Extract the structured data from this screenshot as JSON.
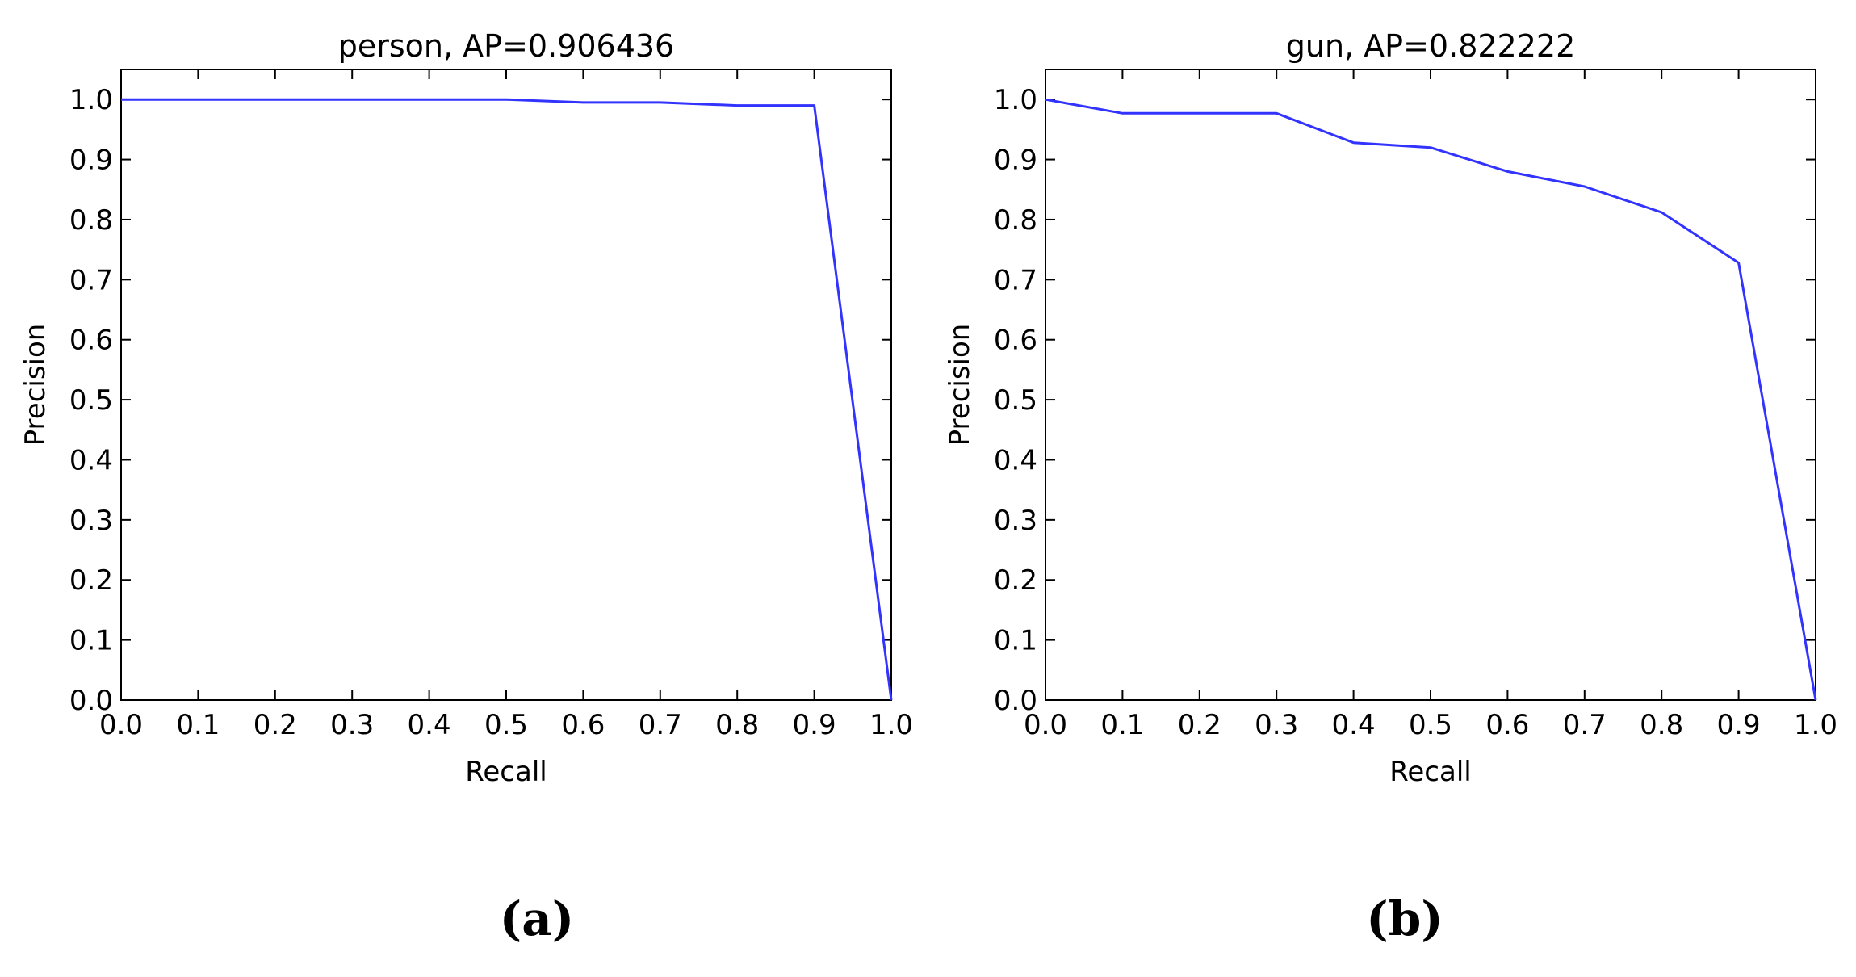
{
  "chart_data": [
    {
      "type": "line",
      "title": "person, AP=0.906436",
      "xlabel": "Recall",
      "ylabel": "Precision",
      "xlim": [
        0.0,
        1.0
      ],
      "ylim": [
        0.0,
        1.05
      ],
      "xticks": [
        "0.0",
        "0.1",
        "0.2",
        "0.3",
        "0.4",
        "0.5",
        "0.6",
        "0.7",
        "0.8",
        "0.9",
        "1.0"
      ],
      "yticks": [
        "0.0",
        "0.1",
        "0.2",
        "0.3",
        "0.4",
        "0.5",
        "0.6",
        "0.7",
        "0.8",
        "0.9",
        "1.0"
      ],
      "grid": false,
      "line_color": "#3333ff",
      "x": [
        0.0,
        0.1,
        0.2,
        0.3,
        0.4,
        0.5,
        0.6,
        0.7,
        0.8,
        0.9,
        1.0
      ],
      "y": [
        1.0,
        1.0,
        1.0,
        1.0,
        1.0,
        1.0,
        0.995,
        0.995,
        0.99,
        0.99,
        0.0
      ],
      "panel_label": "(a)"
    },
    {
      "type": "line",
      "title": "gun, AP=0.822222",
      "xlabel": "Recall",
      "ylabel": "Precision",
      "xlim": [
        0.0,
        1.0
      ],
      "ylim": [
        0.0,
        1.05
      ],
      "xticks": [
        "0.0",
        "0.1",
        "0.2",
        "0.3",
        "0.4",
        "0.5",
        "0.6",
        "0.7",
        "0.8",
        "0.9",
        "1.0"
      ],
      "yticks": [
        "0.0",
        "0.1",
        "0.2",
        "0.3",
        "0.4",
        "0.5",
        "0.6",
        "0.7",
        "0.8",
        "0.9",
        "1.0"
      ],
      "grid": false,
      "line_color": "#3333ff",
      "x": [
        0.0,
        0.1,
        0.2,
        0.3,
        0.4,
        0.5,
        0.6,
        0.7,
        0.8,
        0.9,
        1.0
      ],
      "y": [
        1.0,
        0.977,
        0.977,
        0.977,
        0.928,
        0.92,
        0.88,
        0.855,
        0.812,
        0.728,
        0.0
      ],
      "panel_label": "(b)"
    }
  ]
}
